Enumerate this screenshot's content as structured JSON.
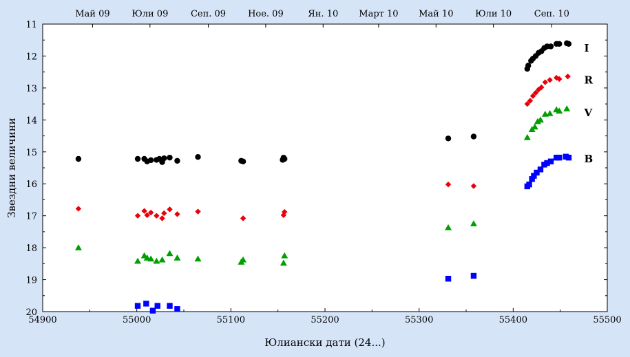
{
  "chart_data": {
    "type": "scatter",
    "title": "",
    "xlabel": "Юлиански дати (24...)",
    "ylabel": "Звездни величини",
    "xlim": [
      54900,
      55500
    ],
    "ylim": [
      11,
      20
    ],
    "y_inverted": true,
    "x_ticks": [
      54900,
      55000,
      55100,
      55200,
      55300,
      55400,
      55500
    ],
    "y_ticks": [
      11,
      12,
      13,
      14,
      15,
      16,
      17,
      18,
      19,
      20
    ],
    "top_axis": [
      {
        "label": "Май 09",
        "x": 54953
      },
      {
        "label": "Юли 09",
        "x": 55014
      },
      {
        "label": "Сеп. 09",
        "x": 55076
      },
      {
        "label": "Ное. 09",
        "x": 55137
      },
      {
        "label": "Ян. 10",
        "x": 55198
      },
      {
        "label": "Март 10",
        "x": 55257
      },
      {
        "label": "Май 10",
        "x": 55318
      },
      {
        "label": "Юли 10",
        "x": 55379
      },
      {
        "label": "Сеп. 10",
        "x": 55441
      }
    ],
    "grid": false,
    "legend": "none",
    "series": [
      {
        "name": "I",
        "marker": "circle",
        "color": "#000000",
        "label_at": [
          55455,
          11.75
        ],
        "points": [
          [
            54938,
            15.22
          ],
          [
            55001,
            15.22
          ],
          [
            55008,
            15.22
          ],
          [
            55011,
            15.3
          ],
          [
            55015,
            15.26
          ],
          [
            55021,
            15.25
          ],
          [
            55024,
            15.22
          ],
          [
            55027,
            15.32
          ],
          [
            55029,
            15.2
          ],
          [
            55035,
            15.18
          ],
          [
            55043,
            15.28
          ],
          [
            55065,
            15.16
          ],
          [
            55111,
            15.28
          ],
          [
            55113,
            15.3
          ],
          [
            55155,
            15.25
          ],
          [
            55156,
            15.18
          ],
          [
            55157,
            15.22
          ],
          [
            55331,
            14.58
          ],
          [
            55358,
            14.52
          ],
          [
            55415,
            12.4
          ],
          [
            55416,
            12.3
          ],
          [
            55419,
            12.15
          ],
          [
            55421,
            12.08
          ],
          [
            55424,
            12.0
          ],
          [
            55427,
            11.9
          ],
          [
            55430,
            11.85
          ],
          [
            55433,
            11.75
          ],
          [
            55436,
            11.7
          ],
          [
            55440,
            11.7
          ],
          [
            55446,
            11.62
          ],
          [
            55449,
            11.62
          ],
          [
            55457,
            11.6
          ],
          [
            55459,
            11.62
          ]
        ]
      },
      {
        "name": "R",
        "marker": "diamond",
        "color": "#e8000b",
        "label_at": [
          55455,
          12.75
        ],
        "points": [
          [
            54938,
            16.78
          ],
          [
            55001,
            17.0
          ],
          [
            55008,
            16.85
          ],
          [
            55011,
            16.98
          ],
          [
            55015,
            16.9
          ],
          [
            55021,
            17.0
          ],
          [
            55027,
            17.08
          ],
          [
            55029,
            16.92
          ],
          [
            55035,
            16.8
          ],
          [
            55043,
            16.95
          ],
          [
            55065,
            16.87
          ],
          [
            55113,
            17.08
          ],
          [
            55156,
            16.98
          ],
          [
            55157,
            16.88
          ],
          [
            55331,
            16.02
          ],
          [
            55358,
            16.07
          ],
          [
            55415,
            13.5
          ],
          [
            55418,
            13.4
          ],
          [
            55421,
            13.25
          ],
          [
            55424,
            13.15
          ],
          [
            55427,
            13.05
          ],
          [
            55430,
            12.98
          ],
          [
            55434,
            12.82
          ],
          [
            55439,
            12.75
          ],
          [
            55446,
            12.68
          ],
          [
            55449,
            12.72
          ],
          [
            55458,
            12.64
          ]
        ]
      },
      {
        "name": "V",
        "marker": "triangle",
        "color": "#00a000",
        "label_at": [
          55455,
          13.78
        ],
        "points": [
          [
            54938,
            18.0
          ],
          [
            55001,
            18.42
          ],
          [
            55008,
            18.25
          ],
          [
            55011,
            18.32
          ],
          [
            55015,
            18.35
          ],
          [
            55021,
            18.42
          ],
          [
            55027,
            18.38
          ],
          [
            55035,
            18.18
          ],
          [
            55043,
            18.32
          ],
          [
            55065,
            18.35
          ],
          [
            55111,
            18.45
          ],
          [
            55113,
            18.38
          ],
          [
            55156,
            18.48
          ],
          [
            55157,
            18.25
          ],
          [
            55331,
            17.37
          ],
          [
            55358,
            17.25
          ],
          [
            55415,
            14.55
          ],
          [
            55420,
            14.3
          ],
          [
            55423,
            14.22
          ],
          [
            55426,
            14.05
          ],
          [
            55429,
            14.0
          ],
          [
            55434,
            13.82
          ],
          [
            55439,
            13.8
          ],
          [
            55446,
            13.68
          ],
          [
            55449,
            13.72
          ],
          [
            55457,
            13.65
          ]
        ]
      },
      {
        "name": "B",
        "marker": "square",
        "color": "#0000ff",
        "label_at": [
          55455,
          15.22
        ],
        "points": [
          [
            55001,
            19.82
          ],
          [
            55010,
            19.75
          ],
          [
            55017,
            19.97
          ],
          [
            55022,
            19.82
          ],
          [
            55035,
            19.82
          ],
          [
            55043,
            19.92
          ],
          [
            55331,
            18.97
          ],
          [
            55358,
            18.88
          ],
          [
            55415,
            16.08
          ],
          [
            55417,
            16.02
          ],
          [
            55420,
            15.85
          ],
          [
            55422,
            15.75
          ],
          [
            55425,
            15.65
          ],
          [
            55429,
            15.55
          ],
          [
            55433,
            15.4
          ],
          [
            55436,
            15.35
          ],
          [
            55440,
            15.3
          ],
          [
            55446,
            15.18
          ],
          [
            55449,
            15.18
          ],
          [
            55456,
            15.15
          ],
          [
            55459,
            15.18
          ]
        ]
      }
    ]
  }
}
